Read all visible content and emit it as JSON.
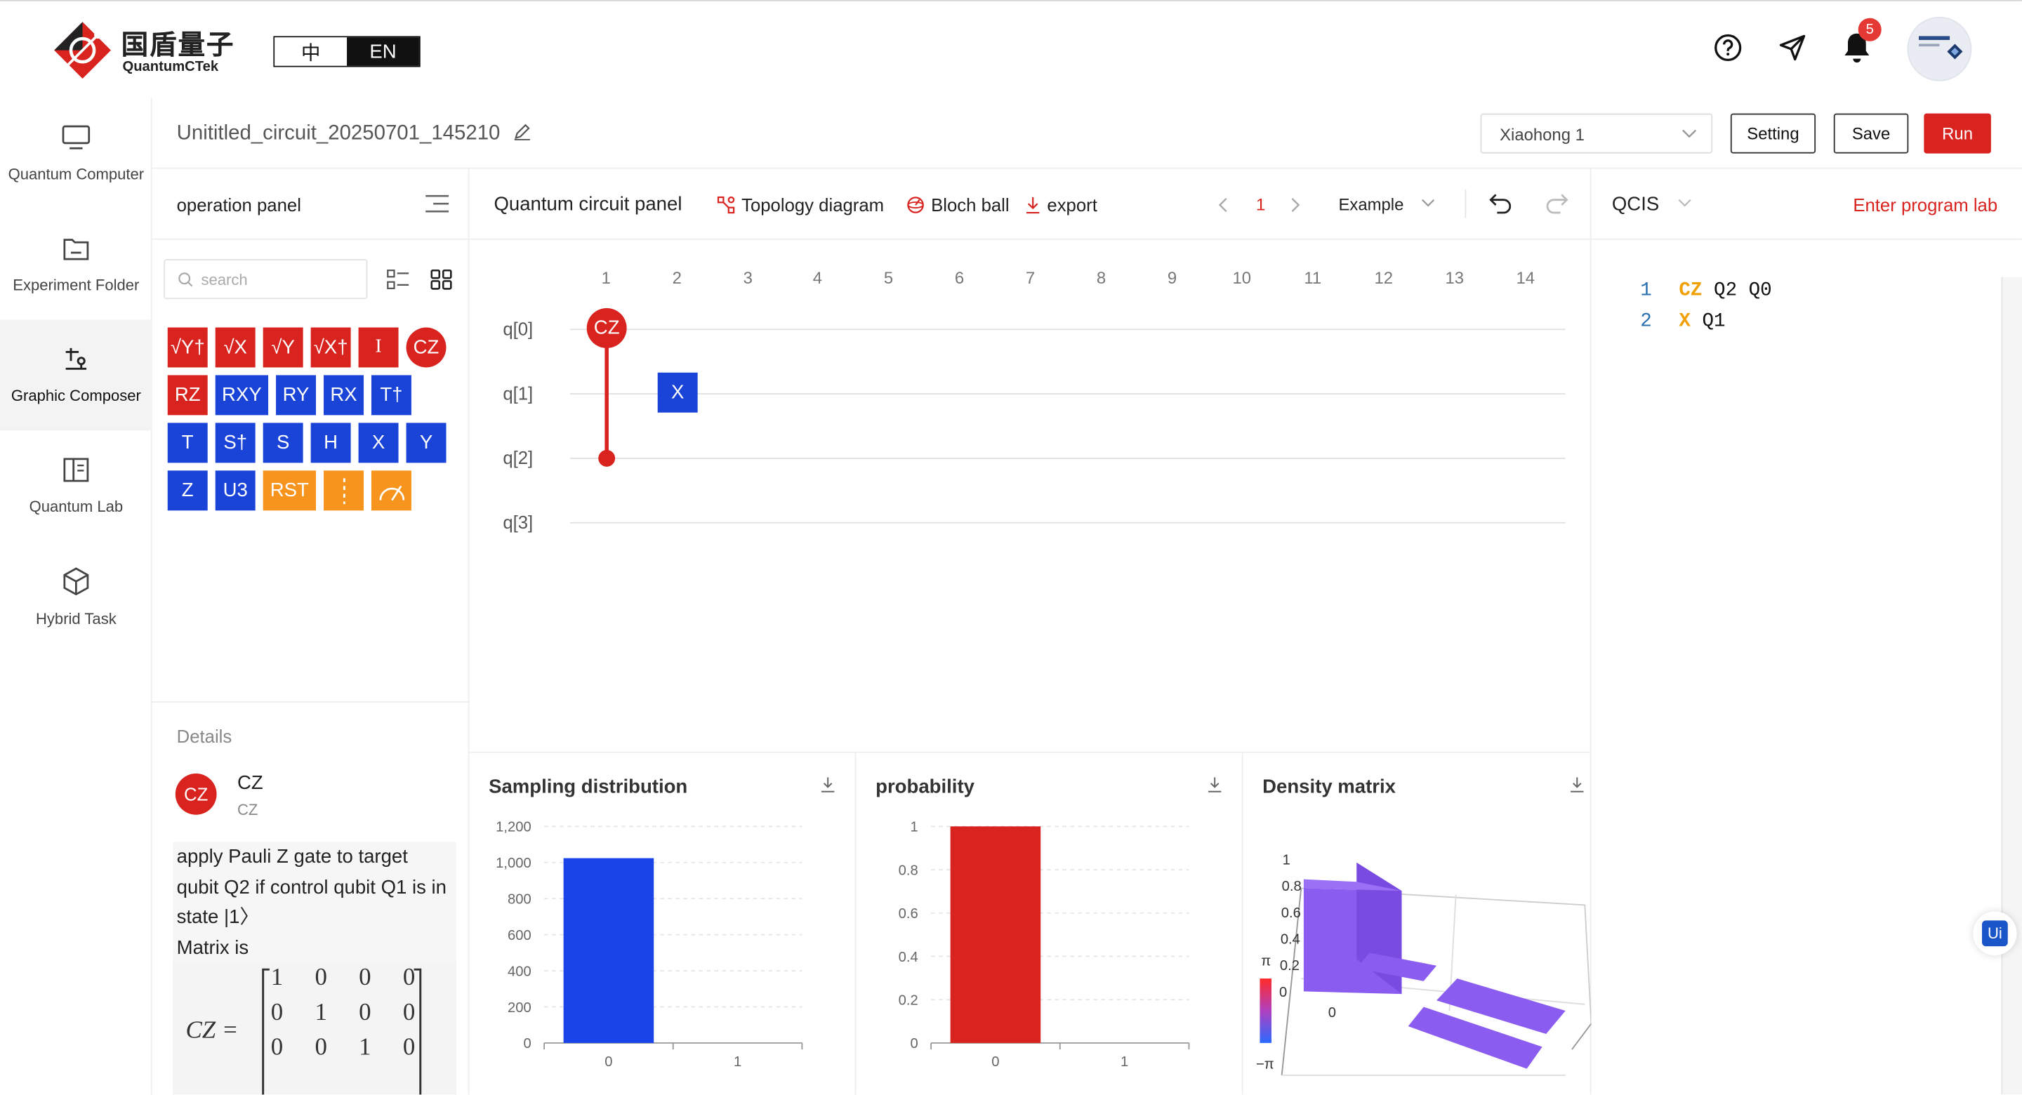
{
  "header": {
    "logo_cn": "国盾量子",
    "logo_en": "QuantumCTek",
    "lang_zh": "中",
    "lang_en": "EN",
    "help_icon": "help-circle-icon",
    "send_icon": "send-icon",
    "bell_icon": "bell-icon",
    "notification_count": "5"
  },
  "nav": {
    "items": [
      {
        "label": "Quantum Computer",
        "icon": "monitor-icon"
      },
      {
        "label": "Experiment Folder",
        "icon": "folder-icon"
      },
      {
        "label": "Graphic Composer",
        "icon": "composer-icon"
      },
      {
        "label": "Quantum Lab",
        "icon": "book-icon"
      },
      {
        "label": "Hybrid Task",
        "icon": "cube-icon"
      }
    ],
    "active": "Graphic Composer"
  },
  "titlebar": {
    "circuit_name": "Unititled_circuit_20250701_145210",
    "device": "Xiaohong 1",
    "setting": "Setting",
    "save": "Save",
    "run": "Run"
  },
  "operation_panel": {
    "title": "operation panel",
    "search_placeholder": "search",
    "gates_row1": [
      "√Y†",
      "√X",
      "√Y",
      "√X†",
      "I",
      "CZ"
    ],
    "gates_row2": [
      "RZ",
      "RXY",
      "RY",
      "RX",
      "T†"
    ],
    "gates_row3": [
      "T",
      "S†",
      "S",
      "H",
      "X",
      "Y"
    ],
    "gates_row4": [
      "Z",
      "U3",
      "RST"
    ],
    "details": {
      "label": "Details",
      "gate_icon": "CZ",
      "gate_name": "CZ",
      "gate_sub": "CZ",
      "description": "apply Pauli Z gate to target qubit Q2 if control qubit Q1 is in state |1〉",
      "matrix_label": "Matrix is",
      "matrix_lhs": "CZ =",
      "matrix_rows": [
        [
          "1",
          "0",
          "0",
          "0"
        ],
        [
          "0",
          "1",
          "0",
          "0"
        ],
        [
          "0",
          "0",
          "1",
          "0"
        ]
      ]
    }
  },
  "circuit_panel": {
    "title": "Quantum circuit panel",
    "topology": "Topology diagram",
    "bloch": "Bloch ball",
    "export": "export",
    "page": "1",
    "example": "Example",
    "columns": [
      "1",
      "2",
      "3",
      "4",
      "5",
      "6",
      "7",
      "8",
      "9",
      "10",
      "11",
      "12",
      "13",
      "14"
    ],
    "qubits": [
      "q[0]",
      "q[1]",
      "q[2]",
      "q[3]"
    ],
    "gates": [
      {
        "name": "CZ",
        "control_qubit": "q[0]",
        "target_qubit": "q[2]",
        "column": "1"
      },
      {
        "name": "X",
        "qubit": "q[1]",
        "column": "2"
      }
    ]
  },
  "qcis": {
    "title": "QCIS",
    "enter_lab": "Enter program lab",
    "lines": [
      {
        "n": "1",
        "op": "CZ",
        "args": "Q2 Q0"
      },
      {
        "n": "2",
        "op": "X",
        "args": "Q1"
      }
    ],
    "ui_badge": "Ui"
  },
  "results": {
    "sampling_title": "Sampling distribution",
    "probability_title": "probability",
    "density_title": "Density matrix",
    "colorbar_top": "π",
    "colorbar_bottom": "−π"
  },
  "chart_data": [
    {
      "type": "bar",
      "title": "Sampling distribution",
      "categories": [
        "0",
        "1"
      ],
      "values": [
        1024,
        0
      ],
      "ylim": [
        0,
        1200
      ],
      "yticks": [
        "0",
        "200",
        "400",
        "600",
        "800",
        "1,000",
        "1,200"
      ],
      "color": "#1a43e8",
      "grid": true
    },
    {
      "type": "bar",
      "title": "probability",
      "categories": [
        "0",
        "1"
      ],
      "values": [
        1,
        0
      ],
      "ylim": [
        0,
        1
      ],
      "yticks": [
        "0",
        "0.2",
        "0.4",
        "0.6",
        "0.8",
        "1"
      ],
      "color": "#d8231f",
      "grid": true
    },
    {
      "type": "bar3d",
      "title": "Density matrix",
      "zticks": [
        "0",
        "0.2",
        "0.4",
        "0.6",
        "0.8",
        "1"
      ],
      "matrix_real": [
        [
          1,
          0
        ],
        [
          0,
          0
        ]
      ],
      "color": "#8b5cf0"
    }
  ]
}
